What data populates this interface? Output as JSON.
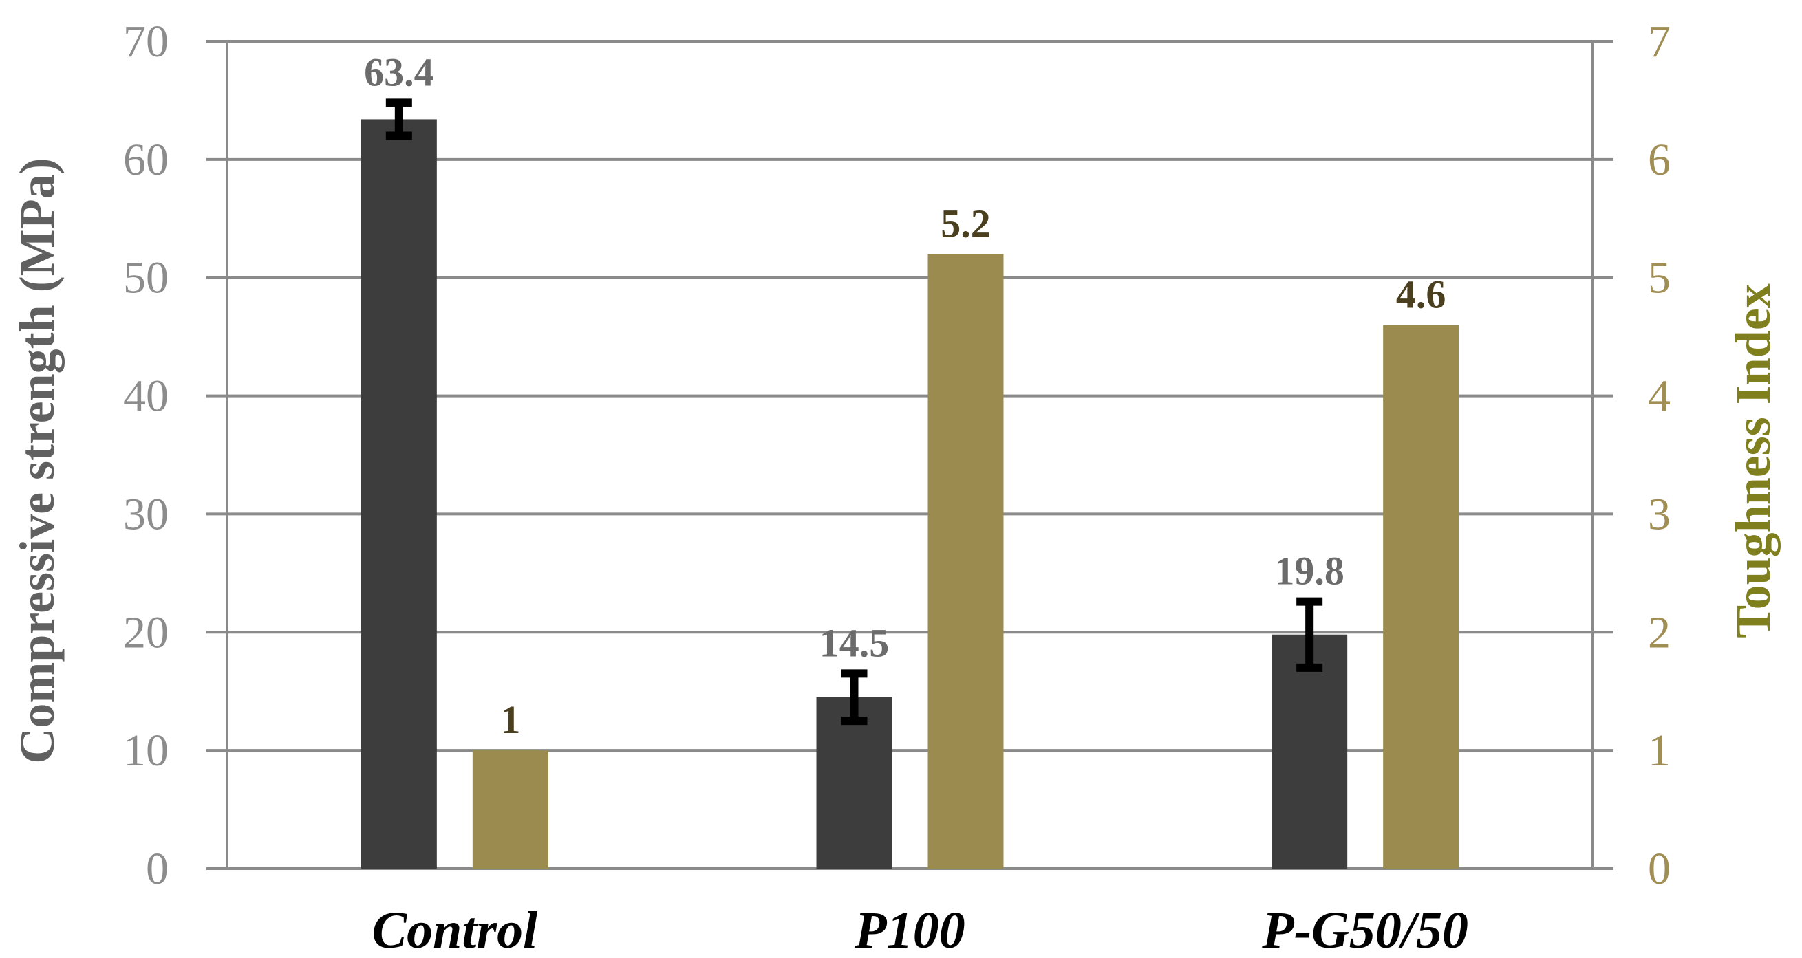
{
  "chart_data": {
    "type": "bar",
    "categories": [
      "Control",
      "P100",
      "P-G50/50"
    ],
    "series": [
      {
        "name": "Compressive strength",
        "axis": "left",
        "color": "#3d3d3d",
        "values": [
          63.4,
          14.5,
          19.8
        ],
        "labels": [
          "63.4",
          "14.5",
          "19.8"
        ],
        "error": [
          1.4,
          2.0,
          2.8
        ]
      },
      {
        "name": "Toughness Index",
        "axis": "right",
        "color": "#9b8b4e",
        "values": [
          1,
          5.2,
          4.6
        ],
        "labels": [
          "1",
          "5.2",
          "4.6"
        ]
      }
    ],
    "ylabel": "Compressive  strength (MPa)",
    "y2label": "Toughness Index",
    "ylim": [
      0,
      70
    ],
    "y2lim": [
      0,
      7
    ],
    "yticks": [
      "0",
      "10",
      "20",
      "30",
      "40",
      "50",
      "60",
      "70"
    ],
    "y2ticks": [
      "0",
      "1",
      "2",
      "3",
      "4",
      "5",
      "6",
      "7"
    ],
    "grid": true
  }
}
